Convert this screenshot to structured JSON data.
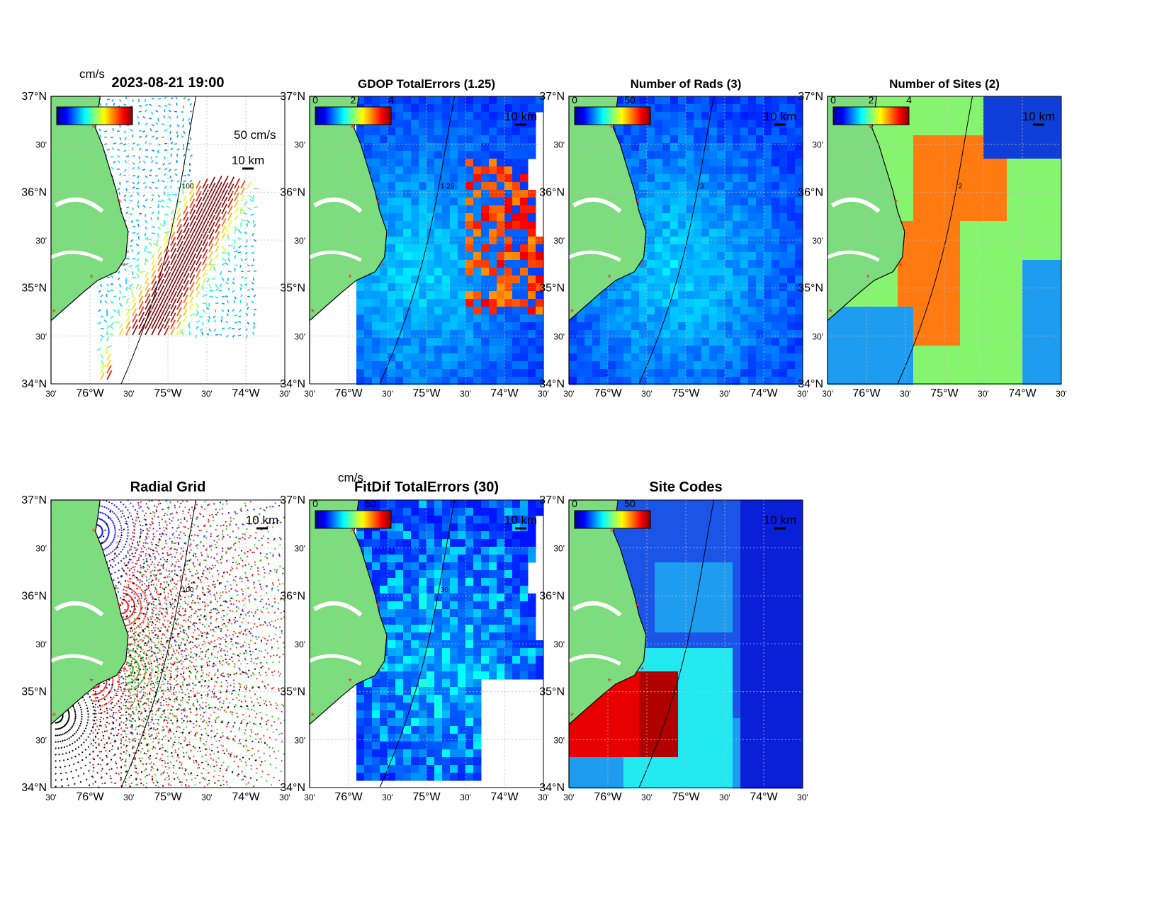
{
  "figure": {
    "lat_ticks": [
      "37°N",
      "30'",
      "36°N",
      "30'",
      "35°N",
      "30'",
      "34°N"
    ],
    "lon_ticks": [
      "30'",
      "76°W",
      "30'",
      "75°W",
      "30'",
      "74°W",
      "30'"
    ],
    "scale_bar_label": "10 km",
    "colors": {
      "land": "#7ddc7d",
      "coast": "#000000",
      "site_marker": "#ff2a2a",
      "grid": "#bdbdbd"
    }
  },
  "panels": [
    {
      "id": "currents",
      "title": "2023-08-21 19:00",
      "colorbar_unit": "cm/s",
      "colorbar_ticks": [],
      "reference_vector_label": "50 cm/s",
      "contour_label": "100",
      "background": "white"
    },
    {
      "id": "gdop",
      "title": "GDOP TotalErrors (1.25)",
      "colorbar_unit": "",
      "colorbar_ticks": [
        "0",
        "2",
        "4"
      ],
      "contour_label": "1.25",
      "background": "blue-field"
    },
    {
      "id": "rads",
      "title": "Number of Rads (3)",
      "colorbar_unit": "",
      "colorbar_ticks": [
        "0",
        "50"
      ],
      "contour_label": "3",
      "background": "blue-field"
    },
    {
      "id": "sites",
      "title": "Number of Sites (2)",
      "colorbar_unit": "",
      "colorbar_ticks": [
        "0",
        "2",
        "4"
      ],
      "contour_label": "2",
      "background": "sites-field"
    },
    {
      "id": "radial",
      "title": "Radial Grid",
      "colorbar_unit": "",
      "colorbar_ticks": [],
      "contour_label": "100",
      "background": "white"
    },
    {
      "id": "fitdif",
      "title": "FitDif TotalErrors (30)",
      "colorbar_unit": "cm/s",
      "colorbar_ticks": [
        "0",
        "50"
      ],
      "contour_label": "30",
      "background": "fitdif-field"
    },
    {
      "id": "codes",
      "title": "Site Codes",
      "colorbar_unit": "",
      "colorbar_ticks": [
        "0",
        "50"
      ],
      "contour_label": "",
      "background": "codes-field"
    }
  ]
}
